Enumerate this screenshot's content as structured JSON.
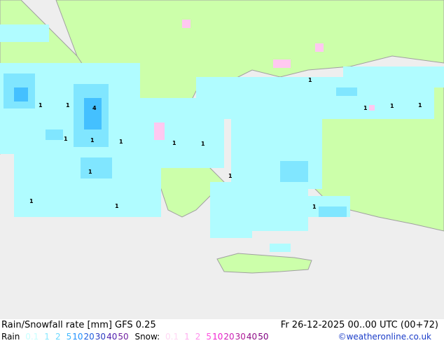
{
  "title": "Rain/Snowfall rate [mm] GFS 0.25",
  "datetime": "Fr 26-12-2025 00..00 UTC (00+72)",
  "legend": {
    "rain_label": "Rain",
    "rain": [
      {
        "v": "0.1",
        "color": "#c8ffff"
      },
      {
        "v": "1",
        "color": "#8ae8ff"
      },
      {
        "v": "2",
        "color": "#6ad8ff"
      },
      {
        "v": "5",
        "color": "#40b8ff"
      },
      {
        "v": "10",
        "color": "#2090ff"
      },
      {
        "v": "20",
        "color": "#2060e0"
      },
      {
        "v": "30",
        "color": "#2a3ac0"
      },
      {
        "v": "40",
        "color": "#5020b0"
      },
      {
        "v": "50",
        "color": "#7020a0"
      }
    ],
    "snow_label": "Snow:",
    "snow": [
      {
        "v": "0.1",
        "color": "#ffd8f4"
      },
      {
        "v": "1",
        "color": "#ffb0f0"
      },
      {
        "v": "2",
        "color": "#ff90ec"
      },
      {
        "v": "5",
        "color": "#ff50e0"
      },
      {
        "v": "10",
        "color": "#f020d0"
      },
      {
        "v": "20",
        "color": "#d020b8"
      },
      {
        "v": "30",
        "color": "#b01898"
      },
      {
        "v": "40",
        "color": "#901088"
      },
      {
        "v": "50",
        "color": "#800080"
      }
    ]
  },
  "credit": "©weatheronline.co.uk",
  "colors": {
    "sea": "#eeeeee",
    "land": "#ccffaa",
    "rain_light": "#b0fcff",
    "rain_mid": "#80e6ff",
    "rain_heavy": "#44c0ff",
    "snow": "#ffc8f0",
    "border": "#a0a0a0"
  },
  "map_labels": [
    "1",
    "1",
    "4",
    "1",
    "1",
    "1",
    "1",
    "1",
    "1",
    "1",
    "1",
    "1",
    "1",
    "1",
    "1",
    "1",
    "1"
  ]
}
